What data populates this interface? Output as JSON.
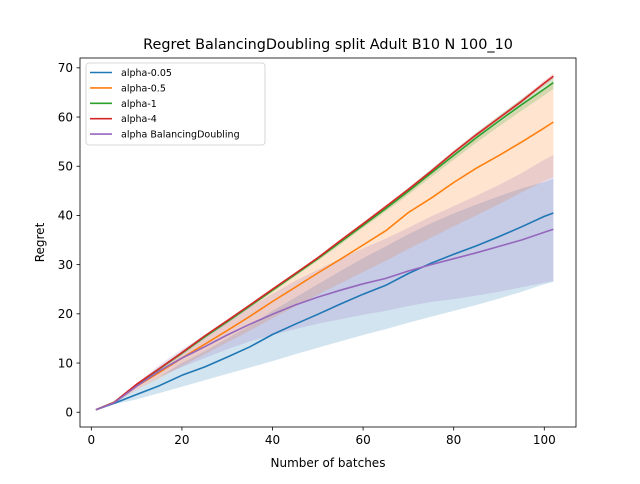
{
  "chart_data": {
    "type": "line",
    "title": "Regret BalancingDoubling split Adult B10 N 100_10",
    "xlabel": "Number of batches",
    "ylabel": "Regret",
    "xlim": [
      -2.5,
      107
    ],
    "ylim": [
      -3,
      72
    ],
    "xticks": [
      0,
      20,
      40,
      60,
      80,
      100
    ],
    "yticks": [
      0,
      10,
      20,
      30,
      40,
      50,
      60,
      70
    ],
    "grid": false,
    "legend_position": "top-left",
    "series": [
      {
        "name": "alpha-0.05",
        "color": "#1f77b4",
        "x": [
          1,
          5,
          10,
          15,
          20,
          25,
          30,
          35,
          40,
          45,
          50,
          55,
          60,
          65,
          70,
          75,
          80,
          85,
          90,
          95,
          100,
          102
        ],
        "y": [
          0.5,
          1.8,
          3.6,
          5.4,
          7.5,
          9.2,
          11.2,
          13.3,
          15.8,
          17.9,
          19.9,
          22.0,
          24.0,
          25.8,
          28.2,
          30.3,
          32.1,
          33.8,
          35.7,
          37.7,
          39.8,
          40.5
        ],
        "lower": [
          0.5,
          1.6,
          2.6,
          3.9,
          5.2,
          6.5,
          7.8,
          9.1,
          10.4,
          11.8,
          13.1,
          14.4,
          15.7,
          16.9,
          18.2,
          19.4,
          20.6,
          21.8,
          23.1,
          24.5,
          26.0,
          26.5
        ],
        "upper": [
          0.5,
          2.0,
          4.6,
          7.2,
          10.0,
          12.4,
          15.0,
          17.6,
          20.6,
          23.3,
          26.0,
          28.7,
          31.3,
          33.7,
          36.2,
          38.4,
          40.4,
          42.2,
          43.9,
          45.5,
          46.8,
          47.5
        ]
      },
      {
        "name": "alpha-0.5",
        "color": "#ff7f0e",
        "x": [
          1,
          5,
          10,
          15,
          20,
          25,
          30,
          35,
          40,
          45,
          50,
          55,
          60,
          65,
          70,
          75,
          80,
          85,
          90,
          95,
          100,
          102
        ],
        "y": [
          0.5,
          2.0,
          5.3,
          8.1,
          11.0,
          13.8,
          16.6,
          19.5,
          22.5,
          25.4,
          28.3,
          31.1,
          34.0,
          36.9,
          40.6,
          43.5,
          46.7,
          49.6,
          52.2,
          54.9,
          57.8,
          59.0
        ],
        "lower": [
          0.5,
          1.9,
          4.6,
          6.9,
          9.4,
          11.8,
          14.2,
          16.6,
          19.1,
          21.5,
          23.9,
          26.2,
          28.5,
          30.8,
          33.2,
          35.5,
          37.8,
          40.0,
          42.3,
          44.7,
          47.0,
          47.8
        ],
        "upper": [
          0.5,
          2.1,
          5.6,
          8.6,
          11.8,
          15.0,
          18.2,
          21.4,
          24.8,
          28.1,
          31.4,
          34.7,
          38.0,
          41.3,
          45.0,
          48.4,
          52.0,
          55.6,
          58.8,
          62.2,
          65.8,
          67.5
        ]
      },
      {
        "name": "alpha-1",
        "color": "#2ca02c",
        "x": [
          1,
          5,
          10,
          15,
          20,
          25,
          30,
          35,
          40,
          45,
          50,
          55,
          60,
          65,
          70,
          75,
          80,
          85,
          90,
          95,
          100,
          102
        ],
        "y": [
          0.5,
          2.0,
          5.6,
          8.8,
          12.0,
          15.3,
          18.4,
          21.6,
          24.8,
          28.0,
          31.2,
          34.6,
          38.0,
          41.4,
          44.9,
          48.6,
          52.2,
          55.8,
          59.2,
          62.5,
          65.7,
          67.0
        ],
        "lower": [
          0.5,
          1.9,
          5.4,
          8.5,
          11.6,
          14.9,
          18.0,
          21.2,
          24.4,
          27.6,
          30.8,
          34.1,
          37.5,
          40.8,
          44.2,
          47.8,
          51.3,
          54.8,
          58.1,
          61.3,
          64.4,
          65.7
        ],
        "upper": [
          0.5,
          2.1,
          5.8,
          9.1,
          12.4,
          15.7,
          18.8,
          22.0,
          25.2,
          28.4,
          31.6,
          35.1,
          38.5,
          42.0,
          45.6,
          49.4,
          53.1,
          56.8,
          60.3,
          63.7,
          67.0,
          68.3
        ]
      },
      {
        "name": "alpha-4",
        "color": "#d62728",
        "x": [
          1,
          5,
          10,
          15,
          20,
          25,
          30,
          35,
          40,
          45,
          50,
          55,
          60,
          65,
          70,
          75,
          80,
          85,
          90,
          95,
          100,
          102
        ],
        "y": [
          0.5,
          2.0,
          5.7,
          8.9,
          12.1,
          15.5,
          18.6,
          21.8,
          25.0,
          28.2,
          31.4,
          34.9,
          38.3,
          41.8,
          45.3,
          49.0,
          52.8,
          56.4,
          59.8,
          63.2,
          66.9,
          68.3
        ],
        "lower": [
          0.5,
          1.9,
          5.6,
          8.8,
          11.9,
          15.3,
          18.4,
          21.6,
          24.8,
          28.0,
          31.2,
          34.6,
          38.0,
          41.5,
          45.0,
          48.7,
          52.4,
          56.0,
          59.4,
          62.8,
          66.4,
          67.8
        ],
        "upper": [
          0.5,
          2.1,
          5.8,
          9.0,
          12.3,
          15.7,
          18.8,
          22.0,
          25.2,
          28.4,
          31.6,
          35.2,
          38.6,
          42.1,
          45.6,
          49.3,
          53.2,
          56.8,
          60.2,
          63.6,
          67.4,
          68.8
        ]
      },
      {
        "name": "alpha BalancingDoubling",
        "color": "#9467bd",
        "x": [
          1,
          5,
          10,
          15,
          20,
          25,
          30,
          35,
          40,
          45,
          50,
          55,
          60,
          65,
          70,
          75,
          80,
          85,
          90,
          95,
          100,
          102
        ],
        "y": [
          0.5,
          1.9,
          5.3,
          8.4,
          11.0,
          13.3,
          15.7,
          17.9,
          19.9,
          21.8,
          23.4,
          24.8,
          26.1,
          27.2,
          28.7,
          30.0,
          31.2,
          32.4,
          33.7,
          35.0,
          36.6,
          37.2
        ],
        "lower": [
          0.5,
          1.8,
          4.6,
          7.2,
          9.2,
          11.0,
          12.8,
          14.4,
          15.7,
          16.9,
          18.0,
          18.9,
          19.8,
          20.6,
          21.6,
          22.4,
          23.0,
          23.7,
          24.5,
          25.4,
          26.3,
          26.7
        ],
        "upper": [
          0.5,
          2.0,
          5.8,
          9.6,
          12.8,
          15.6,
          18.6,
          21.4,
          24.1,
          26.7,
          29.0,
          31.2,
          33.3,
          35.3,
          37.5,
          39.8,
          41.9,
          44.0,
          46.2,
          48.6,
          51.3,
          52.3
        ]
      }
    ]
  }
}
